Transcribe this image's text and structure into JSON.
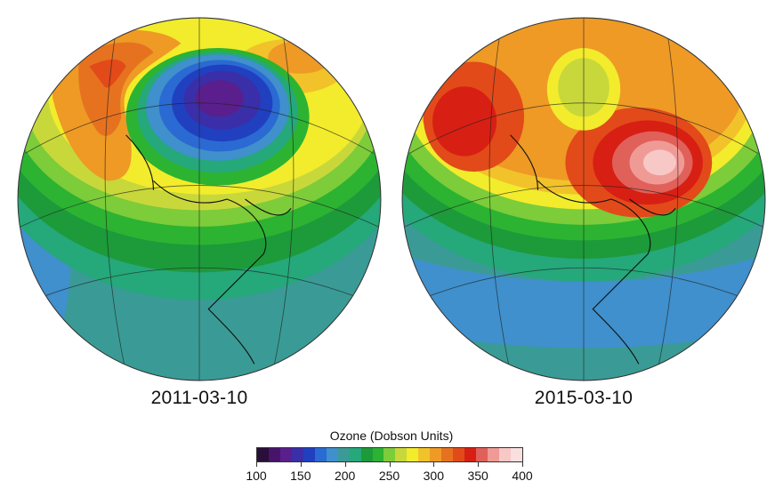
{
  "panels": [
    {
      "date": "2011-03-10",
      "pattern": "arctic ozone hole (low ozone over the pole)"
    },
    {
      "date": "2015-03-10",
      "pattern": "high ozone over the pole"
    }
  ],
  "legend": {
    "title": "Ozone (Dobson Units)",
    "min": 100,
    "max": 400,
    "ticks": [
      "100",
      "150",
      "200",
      "250",
      "300",
      "350",
      "400"
    ],
    "colors": [
      "#2a0f3a",
      "#46146a",
      "#5a1f8c",
      "#3a2fa8",
      "#2040c0",
      "#2a6ad2",
      "#3f90cc",
      "#3a9b96",
      "#25a87a",
      "#1d9a3a",
      "#2cb332",
      "#7dcc3a",
      "#c8d83a",
      "#f2ec2c",
      "#f2c22a",
      "#ee9a25",
      "#e67220",
      "#e24a1a",
      "#d81f14",
      "#e0605a",
      "#f09a96",
      "#f7c8c6",
      "#f9e0de"
    ]
  }
}
